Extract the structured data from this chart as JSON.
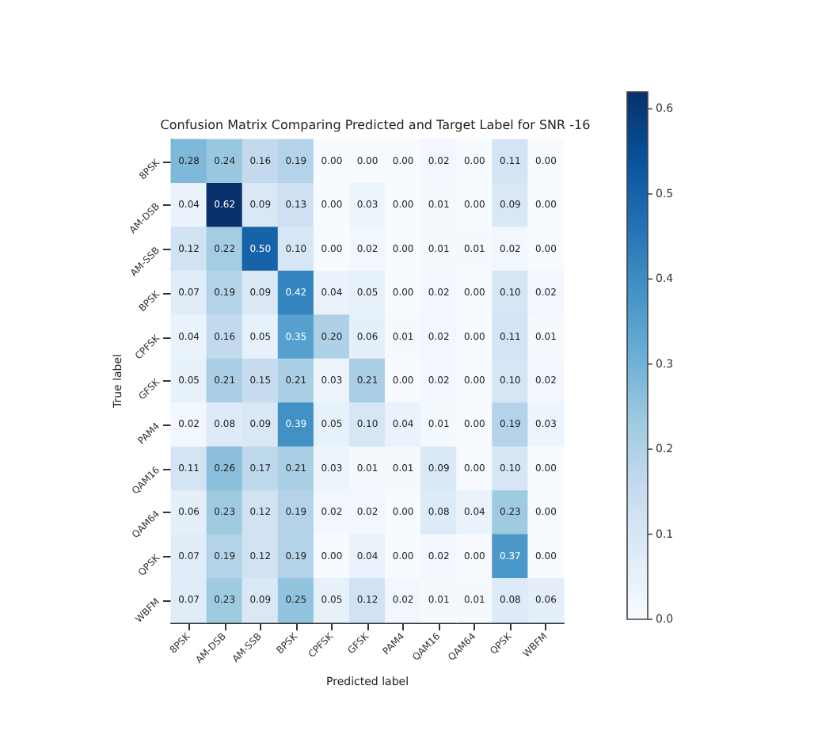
{
  "chart_data": {
    "type": "heatmap",
    "title": "Confusion Matrix Comparing Predicted and Target Label for SNR -16",
    "xlabel": "Predicted label",
    "ylabel": "True label",
    "categories": [
      "8PSK",
      "AM-DSB",
      "AM-SSB",
      "BPSK",
      "CPFSK",
      "GFSK",
      "PAM4",
      "QAM16",
      "QAM64",
      "QPSK",
      "WBFM"
    ],
    "y_categories": [
      "8PSK",
      "AM-DSB",
      "AM-SSB",
      "BPSK",
      "CPFSK",
      "GFSK",
      "PAM4",
      "QAM16",
      "QAM64",
      "QPSK",
      "WBFM"
    ],
    "cells": [
      [
        0.28,
        0.24,
        0.16,
        0.19,
        0.0,
        0.0,
        0.0,
        0.02,
        0.0,
        0.11,
        0.0
      ],
      [
        0.04,
        0.62,
        0.09,
        0.13,
        0.0,
        0.03,
        0.0,
        0.01,
        0.0,
        0.09,
        0.0
      ],
      [
        0.12,
        0.22,
        0.5,
        0.1,
        0.0,
        0.02,
        0.0,
        0.01,
        0.01,
        0.02,
        0.0
      ],
      [
        0.07,
        0.19,
        0.09,
        0.42,
        0.04,
        0.05,
        0.0,
        0.02,
        0.0,
        0.1,
        0.02
      ],
      [
        0.04,
        0.16,
        0.05,
        0.35,
        0.2,
        0.06,
        0.01,
        0.02,
        0.0,
        0.11,
        0.01
      ],
      [
        0.05,
        0.21,
        0.15,
        0.21,
        0.03,
        0.21,
        0.0,
        0.02,
        0.0,
        0.1,
        0.02
      ],
      [
        0.02,
        0.08,
        0.09,
        0.39,
        0.05,
        0.1,
        0.04,
        0.01,
        0.0,
        0.19,
        0.03
      ],
      [
        0.11,
        0.26,
        0.17,
        0.21,
        0.03,
        0.01,
        0.01,
        0.09,
        0.0,
        0.1,
        0.0
      ],
      [
        0.06,
        0.23,
        0.12,
        0.19,
        0.02,
        0.02,
        0.0,
        0.08,
        0.04,
        0.23,
        0.0
      ],
      [
        0.07,
        0.19,
        0.12,
        0.19,
        0.0,
        0.04,
        0.0,
        0.02,
        0.0,
        0.37,
        0.0
      ],
      [
        0.07,
        0.23,
        0.09,
        0.25,
        0.05,
        0.12,
        0.02,
        0.01,
        0.01,
        0.08,
        0.06
      ]
    ],
    "clim": [
      0,
      0.62
    ],
    "cticks": [
      {
        "value": 0,
        "label": "0.0"
      },
      {
        "value": 0.1,
        "label": "0.1"
      },
      {
        "value": 0.2,
        "label": "0.2"
      },
      {
        "value": 0.3,
        "label": "0.3"
      },
      {
        "value": 0.4,
        "label": "0.4"
      },
      {
        "value": 0.5,
        "label": "0.5"
      },
      {
        "value": 0.6,
        "label": "0.6"
      }
    ],
    "cell_labels": [
      [
        "0.28",
        "0.24",
        "0.16",
        "0.19",
        "0.00",
        "0.00",
        "0.00",
        "0.02",
        "0.00",
        "0.11",
        "0.00"
      ],
      [
        "0.04",
        "0.62",
        "0.09",
        "0.13",
        "0.00",
        "0.03",
        "0.00",
        "0.01",
        "0.00",
        "0.09",
        "0.00"
      ],
      [
        "0.12",
        "0.22",
        "0.50",
        "0.10",
        "0.00",
        "0.02",
        "0.00",
        "0.01",
        "0.01",
        "0.02",
        "0.00"
      ],
      [
        "0.07",
        "0.19",
        "0.09",
        "0.42",
        "0.04",
        "0.05",
        "0.00",
        "0.02",
        "0.00",
        "0.10",
        "0.02"
      ],
      [
        "0.04",
        "0.16",
        "0.05",
        "0.35",
        "0.20",
        "0.06",
        "0.01",
        "0.02",
        "0.00",
        "0.11",
        "0.01"
      ],
      [
        "0.05",
        "0.21",
        "0.15",
        "0.21",
        "0.03",
        "0.21",
        "0.00",
        "0.02",
        "0.00",
        "0.10",
        "0.02"
      ],
      [
        "0.02",
        "0.08",
        "0.09",
        "0.39",
        "0.05",
        "0.10",
        "0.04",
        "0.01",
        "0.00",
        "0.19",
        "0.03"
      ],
      [
        "0.11",
        "0.26",
        "0.17",
        "0.21",
        "0.03",
        "0.01",
        "0.01",
        "0.09",
        "0.00",
        "0.10",
        "0.00"
      ],
      [
        "0.06",
        "0.23",
        "0.12",
        "0.19",
        "0.02",
        "0.02",
        "0.00",
        "0.08",
        "0.04",
        "0.23",
        "0.00"
      ],
      [
        "0.07",
        "0.19",
        "0.12",
        "0.19",
        "0.00",
        "0.04",
        "0.00",
        "0.02",
        "0.00",
        "0.37",
        "0.00"
      ],
      [
        "0.07",
        "0.23",
        "0.09",
        "0.25",
        "0.05",
        "0.12",
        "0.02",
        "0.01",
        "0.01",
        "0.08",
        "0.06"
      ]
    ]
  }
}
